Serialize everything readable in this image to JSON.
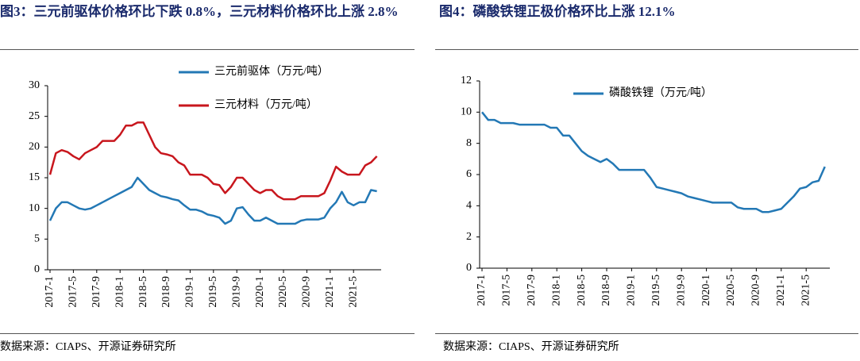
{
  "chart_data": [
    {
      "type": "line",
      "title": "图3：三元前驱体价格环比下跌 0.8%，三元材料价格环比上涨 2.8%",
      "source": "数据来源：CIAPS、开源证券研究所",
      "categories": [
        "2017-1",
        null,
        null,
        null,
        "2017-5",
        null,
        null,
        null,
        "2017-9",
        null,
        null,
        null,
        "2018-1",
        null,
        null,
        null,
        "2018-5",
        null,
        null,
        null,
        "2018-9",
        null,
        null,
        null,
        "2019-1",
        null,
        null,
        null,
        "2019-5",
        null,
        null,
        null,
        "2019-9",
        null,
        null,
        null,
        "2020-1",
        null,
        null,
        null,
        "2020-5",
        null,
        null,
        null,
        "2020-9",
        null,
        null,
        null,
        "2021-1",
        null,
        null,
        null,
        "2021-5",
        null,
        null,
        null,
        null
      ],
      "series": [
        {
          "name": "三元前驱体（万元/吨）",
          "color": "#2378b5",
          "values": [
            8,
            10,
            11,
            11,
            10.5,
            10,
            9.8,
            10,
            10.5,
            11,
            11.5,
            12,
            12.5,
            13,
            13.5,
            15,
            14,
            13,
            12.5,
            12,
            11.8,
            11.5,
            11.3,
            10.5,
            9.8,
            9.8,
            9.5,
            9,
            8.8,
            8.5,
            7.5,
            8,
            10,
            10.2,
            9,
            8,
            8,
            8.5,
            8,
            7.5,
            7.5,
            7.5,
            7.5,
            8,
            8.2,
            8.2,
            8.2,
            8.5,
            10,
            11,
            12.7,
            11,
            10.5,
            11,
            11,
            13,
            12.8
          ]
        },
        {
          "name": "三元材料（万元/吨）",
          "color": "#c8161d",
          "values": [
            15.5,
            19,
            19.5,
            19.2,
            18.5,
            18,
            19,
            19.5,
            20,
            21,
            21,
            21,
            22,
            23.5,
            23.5,
            24,
            24,
            22,
            20,
            19,
            18.8,
            18.5,
            17.5,
            17,
            15.5,
            15.5,
            15.5,
            15,
            14,
            13.8,
            12.5,
            13.5,
            15,
            15,
            14,
            13,
            12.5,
            13,
            13,
            12,
            11.5,
            11.5,
            11.5,
            12,
            12,
            12,
            12,
            12.5,
            14.5,
            16.8,
            16,
            15.5,
            15.5,
            15.5,
            17,
            17.5,
            18.5
          ]
        }
      ],
      "ylim": [
        0,
        30
      ],
      "yticks": [
        0,
        5,
        10,
        15,
        20,
        25,
        30
      ],
      "legend": "top"
    },
    {
      "type": "line",
      "title": "图4：磷酸铁锂正极价格环比上涨 12.1%",
      "source": "数据来源：CIAPS、开源证券研究所",
      "categories": [
        "2017-1",
        null,
        null,
        null,
        "2017-5",
        null,
        null,
        null,
        "2017-9",
        null,
        null,
        null,
        "2018-1",
        null,
        null,
        null,
        "2018-5",
        null,
        null,
        null,
        "2018-9",
        null,
        null,
        null,
        "2019-1",
        null,
        null,
        null,
        "2019-5",
        null,
        null,
        null,
        "2019-9",
        null,
        null,
        null,
        "2020-1",
        null,
        null,
        null,
        "2020-5",
        null,
        null,
        null,
        "2020-9",
        null,
        null,
        null,
        "2021-1",
        null,
        null,
        null,
        "2021-5",
        null,
        null,
        null
      ],
      "series": [
        {
          "name": "磷酸铁锂（万元/吨）",
          "color": "#2378b5",
          "values": [
            10,
            9.5,
            9.5,
            9.3,
            9.3,
            9.3,
            9.2,
            9.2,
            9.2,
            9.2,
            9.2,
            9,
            9,
            8.5,
            8.5,
            8,
            7.5,
            7.2,
            7,
            6.8,
            7,
            6.7,
            6.3,
            6.3,
            6.3,
            6.3,
            6.3,
            5.8,
            5.2,
            5.1,
            5,
            4.9,
            4.8,
            4.6,
            4.5,
            4.4,
            4.3,
            4.2,
            4.2,
            4.2,
            4.2,
            3.9,
            3.8,
            3.8,
            3.8,
            3.6,
            3.6,
            3.7,
            3.8,
            4.2,
            4.6,
            5.1,
            5.2,
            5.5,
            5.6,
            6.5
          ]
        }
      ],
      "ylim": [
        0,
        12
      ],
      "yticks": [
        0,
        2,
        4,
        6,
        8,
        10,
        12
      ],
      "legend": "top"
    }
  ]
}
